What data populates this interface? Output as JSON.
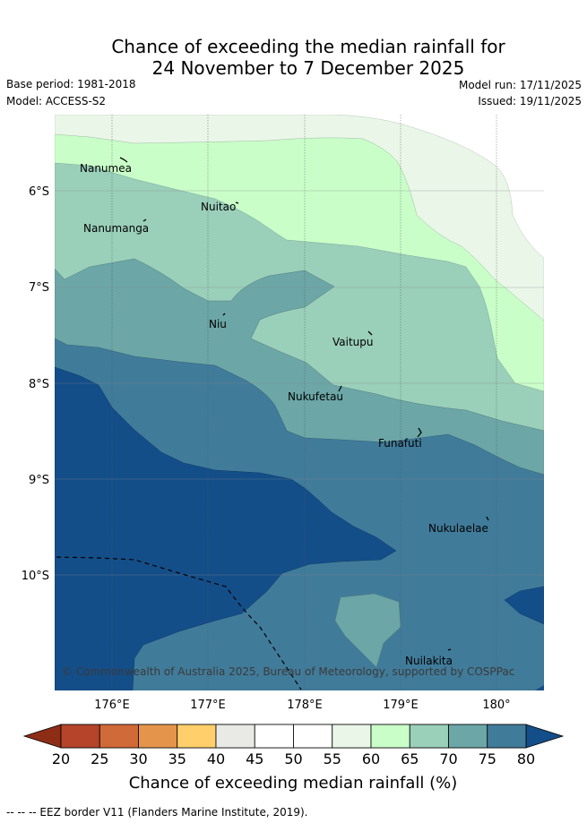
{
  "title_line1": "Chance of exceeding the median rainfall for",
  "title_line2": "24 November to 7 December 2025",
  "base_period": "Base period: 1981-2018",
  "model": "Model: ACCESS-S2",
  "model_run": "Model run: 17/11/2025",
  "issued": "Issued: 19/11/2025",
  "copyright": "© Commonwealth of Australia 2025, Bureau of Meteorology, supported by COSPPac",
  "lat_ticks": [
    "6°S",
    "7°S",
    "8°S",
    "9°S",
    "10°S"
  ],
  "lon_ticks": [
    "176°E",
    "177°E",
    "178°E",
    "179°E",
    "180°"
  ],
  "places": {
    "nanumea": "Nanumea",
    "nuitao": "Nuitao",
    "nanumanga": "Nanumanga",
    "niu": "Niu",
    "vaitupu": "Vaitupu",
    "nukufetau": "Nukufetau",
    "funafuti": "Funafuti",
    "nukulaelae": "Nukulaelae",
    "nuilakita": "Nuilakita"
  },
  "colorbar": {
    "title": "Chance of exceeding median rainfall (%)",
    "ticks": [
      "20",
      "25",
      "30",
      "35",
      "40",
      "45",
      "50",
      "55",
      "60",
      "65",
      "70",
      "75",
      "80"
    ],
    "colors": {
      "below_20": "#8e2d15",
      "20_25": "#b5442a",
      "25_30": "#d06a38",
      "30_35": "#e5954b",
      "35_40": "#fecf6a",
      "40_45": "#e9e9e6",
      "45_50": "#ffffff",
      "50_55": "#ffffff",
      "55_60": "#e9f6e8",
      "60_65": "#c9fec9",
      "65_70": "#9acfb9",
      "70_75": "#6ca6a6",
      "75_80": "#417b9a",
      "above_80": "#144e89"
    }
  },
  "legend_note": "-- -- -- EEZ border V11 (Flanders Marine Institute, 2019)."
}
